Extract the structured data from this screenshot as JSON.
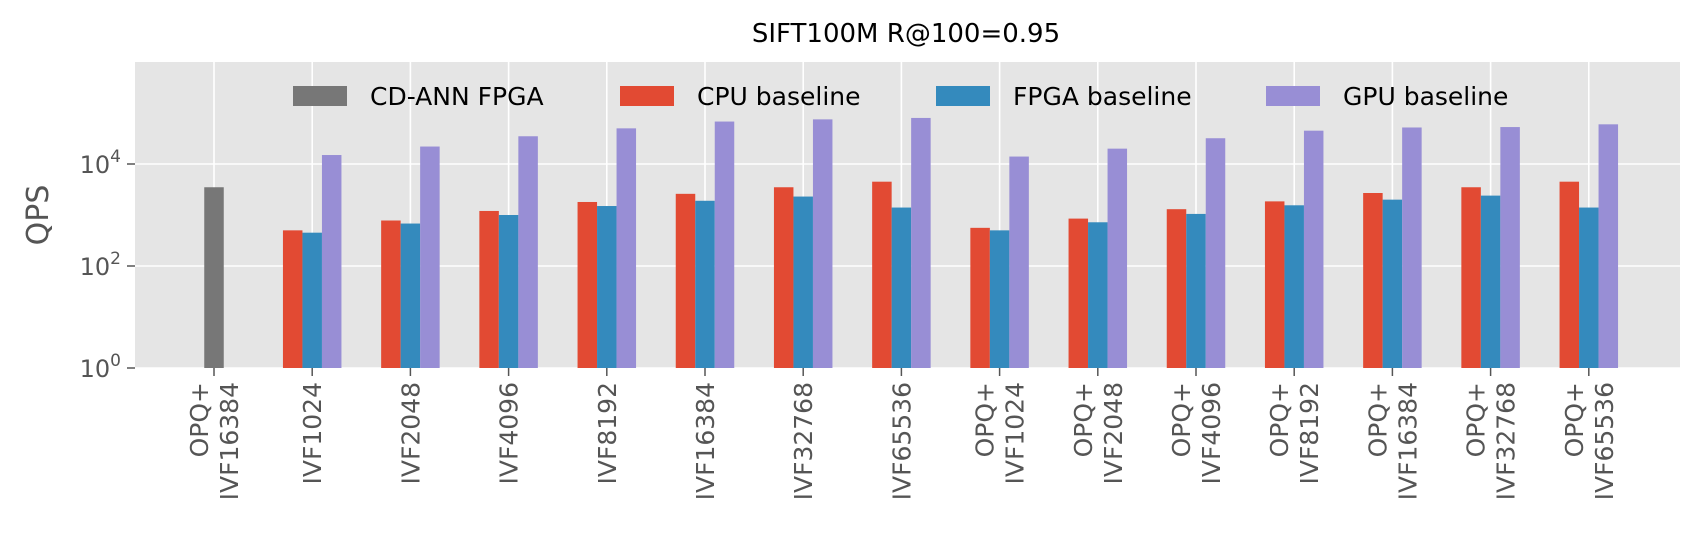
{
  "chart_data": {
    "type": "bar",
    "title": "SIFT100M R@100=0.95",
    "ylabel": "QPS",
    "xlabel": "",
    "yscale": "log",
    "ylim": [
      1,
      1000000
    ],
    "yticks": [
      {
        "base": "10",
        "exp": "0",
        "value": 1
      },
      {
        "base": "10",
        "exp": "2",
        "value": 100
      },
      {
        "base": "10",
        "exp": "4",
        "value": 10000
      }
    ],
    "grid": true,
    "legend_position": "top",
    "categories": [
      [
        "OPQ+",
        "IVF16384"
      ],
      [
        "IVF1024"
      ],
      [
        "IVF2048"
      ],
      [
        "IVF4096"
      ],
      [
        "IVF8192"
      ],
      [
        "IVF16384"
      ],
      [
        "IVF32768"
      ],
      [
        "IVF65536"
      ],
      [
        "OPQ+",
        "IVF1024"
      ],
      [
        "OPQ+",
        "IVF2048"
      ],
      [
        "OPQ+",
        "IVF4096"
      ],
      [
        "OPQ+",
        "IVF8192"
      ],
      [
        "OPQ+",
        "IVF16384"
      ],
      [
        "OPQ+",
        "IVF32768"
      ],
      [
        "OPQ+",
        "IVF65536"
      ]
    ],
    "series": [
      {
        "name": "CD-ANN FPGA",
        "color": "#777777",
        "values": [
          3500,
          null,
          null,
          null,
          null,
          null,
          null,
          null,
          null,
          null,
          null,
          null,
          null,
          null,
          null
        ]
      },
      {
        "name": "CPU baseline",
        "color": "#E24A33",
        "values": [
          null,
          500,
          780,
          1200,
          1800,
          2600,
          3500,
          4500,
          560,
          850,
          1300,
          1850,
          2700,
          3500,
          4500
        ]
      },
      {
        "name": "FPGA baseline",
        "color": "#348ABD",
        "values": [
          null,
          450,
          680,
          1000,
          1500,
          1900,
          2300,
          1400,
          500,
          720,
          1050,
          1550,
          2000,
          2400,
          1400
        ]
      },
      {
        "name": "GPU baseline",
        "color": "#988ED5",
        "values": [
          null,
          15000,
          22000,
          35000,
          50000,
          68000,
          75000,
          80000,
          14000,
          20000,
          32000,
          45000,
          52000,
          53000,
          60000
        ]
      }
    ]
  }
}
